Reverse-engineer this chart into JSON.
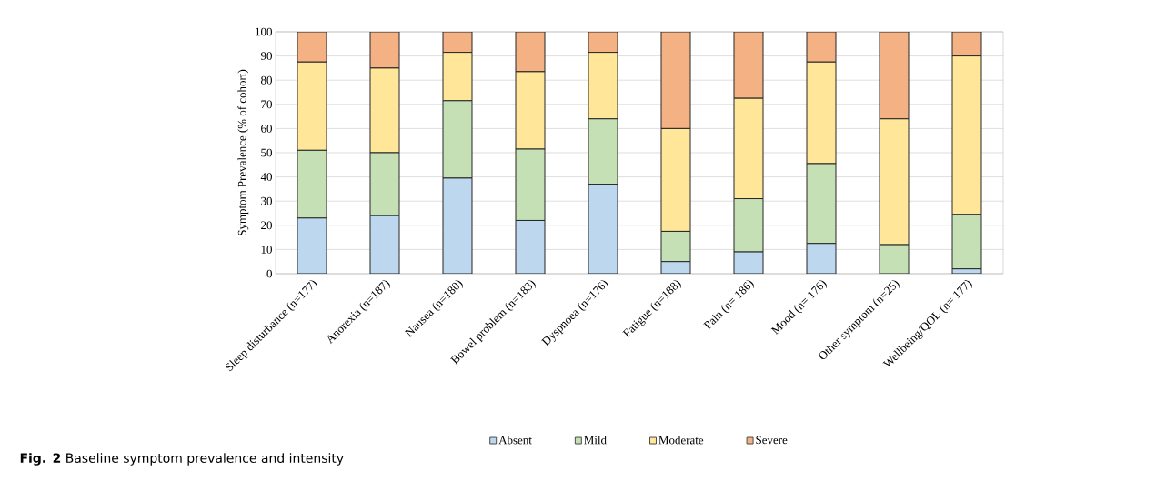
{
  "chart_data": {
    "type": "bar",
    "stacked": true,
    "ylabel": "Symptom Prevalence (% of cohort)",
    "categories": [
      "Sleep disturbance (n=177)",
      "Anorexia (n=187)",
      "Nausea (n=180)",
      "Bowel problem (n=183)",
      "Dyspnoea (n=176)",
      "Fatigue (n=188)",
      "Pain (n= 186)",
      "Mood (n= 176)",
      "Other symptom (n=25)",
      "Wellbeing/QOL (n= 177)"
    ],
    "series": [
      {
        "name": "Absent",
        "color": "#bdd7ee",
        "values": [
          23,
          24,
          39.5,
          22,
          37,
          5,
          9,
          12.5,
          0,
          2
        ]
      },
      {
        "name": "Mild",
        "color": "#c5e0b4",
        "values": [
          28,
          26,
          32,
          29.5,
          27,
          12.5,
          22,
          33,
          12,
          22.5
        ]
      },
      {
        "name": "Moderate",
        "color": "#ffe699",
        "values": [
          36.5,
          35,
          20,
          32,
          27.5,
          42.5,
          41.5,
          42,
          52,
          65.5
        ]
      },
      {
        "name": "Severe",
        "color": "#f4b183",
        "values": [
          12.5,
          15,
          8.5,
          16.5,
          8.5,
          40,
          27.5,
          12.5,
          36,
          10
        ]
      }
    ],
    "ylim": [
      0,
      100
    ],
    "yticks": [
      0,
      10,
      20,
      30,
      40,
      50,
      60,
      70,
      80,
      90,
      100
    ],
    "grid": "y",
    "legend": "bottom",
    "annotations": [
      "**Fig. 2** Baseline symptom prevalence and intensity"
    ]
  }
}
